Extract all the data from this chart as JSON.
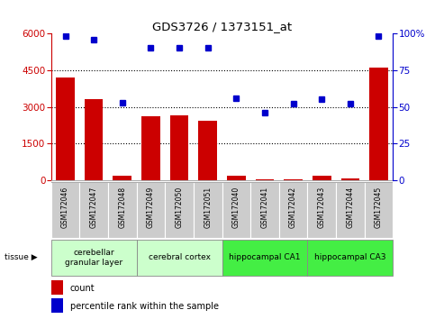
{
  "title": "GDS3726 / 1373151_at",
  "samples": [
    "GSM172046",
    "GSM172047",
    "GSM172048",
    "GSM172049",
    "GSM172050",
    "GSM172051",
    "GSM172040",
    "GSM172041",
    "GSM172042",
    "GSM172043",
    "GSM172044",
    "GSM172045"
  ],
  "counts": [
    4200,
    3300,
    200,
    2600,
    2650,
    2450,
    200,
    30,
    50,
    180,
    60,
    4600
  ],
  "percentiles": [
    98,
    96,
    53,
    90,
    90,
    90,
    56,
    46,
    52,
    55,
    52,
    98
  ],
  "ylim_left": [
    0,
    6000
  ],
  "ylim_right": [
    0,
    100
  ],
  "yticks_left": [
    0,
    1500,
    3000,
    4500,
    6000
  ],
  "yticks_right": [
    0,
    25,
    50,
    75,
    100
  ],
  "tissue_groups": [
    {
      "label": "cerebellar\ngranular layer",
      "start": 0,
      "end": 3,
      "color": "#ccffcc"
    },
    {
      "label": "cerebral cortex",
      "start": 3,
      "end": 6,
      "color": "#ccffcc"
    },
    {
      "label": "hippocampal CA1",
      "start": 6,
      "end": 9,
      "color": "#44ee44"
    },
    {
      "label": "hippocampal CA3",
      "start": 9,
      "end": 12,
      "color": "#44ee44"
    }
  ],
  "bar_color": "#cc0000",
  "dot_color": "#0000cc",
  "left_axis_color": "#cc0000",
  "right_axis_color": "#0000cc",
  "grid_color": "#000000",
  "background_color": "#ffffff",
  "xticklabel_bg": "#cccccc",
  "tissue_label_color": "#000000"
}
